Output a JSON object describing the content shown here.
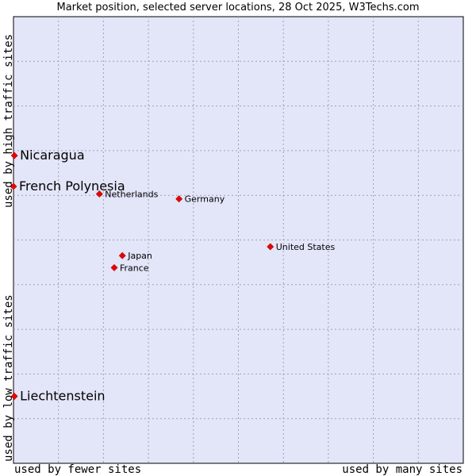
{
  "chart_data": {
    "type": "scatter",
    "title": "Market position, selected server locations, 28 Oct 2025, W3Techs.com",
    "xlabel_low": "used by fewer sites",
    "xlabel_high": "used by many sites",
    "ylabel_low": "used by low traffic sites",
    "ylabel_high": "used by high traffic sites",
    "xlim": [
      0,
      100
    ],
    "ylim": [
      0,
      100
    ],
    "grid": true,
    "colors": {
      "background": "#e3e5f8",
      "grid": "#a0a0b8",
      "marker": "#ee0000",
      "axis": "#000000"
    },
    "points": [
      {
        "name": "Nicaragua",
        "x": 0.2,
        "y": 68.9,
        "emphasis": true
      },
      {
        "name": "French Polynesia",
        "x": 0.0,
        "y": 62.0,
        "emphasis": true
      },
      {
        "name": "Netherlands",
        "x": 19.1,
        "y": 60.3,
        "emphasis": false
      },
      {
        "name": "Germany",
        "x": 36.8,
        "y": 59.2,
        "emphasis": false
      },
      {
        "name": "United States",
        "x": 57.1,
        "y": 48.5,
        "emphasis": false
      },
      {
        "name": "Japan",
        "x": 24.2,
        "y": 46.5,
        "emphasis": false
      },
      {
        "name": "France",
        "x": 22.4,
        "y": 43.8,
        "emphasis": false
      },
      {
        "name": "Liechtenstein",
        "x": 0.2,
        "y": 15.0,
        "emphasis": true
      }
    ]
  }
}
